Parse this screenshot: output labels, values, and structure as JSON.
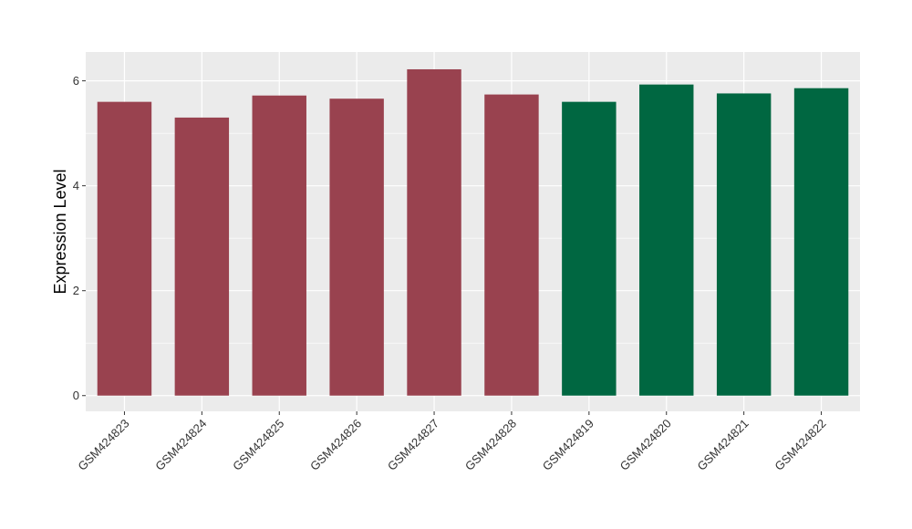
{
  "chart_data": {
    "type": "bar",
    "title": "",
    "xlabel": "",
    "ylabel": "Expression Level",
    "ylim": [
      -0.3,
      6.55
    ],
    "yticks": [
      0,
      2,
      4,
      6
    ],
    "grid": true,
    "categories": [
      "GSM424823",
      "GSM424824",
      "GSM424825",
      "GSM424826",
      "GSM424827",
      "GSM424828",
      "GSM424819",
      "GSM424820",
      "GSM424821",
      "GSM424822"
    ],
    "values": [
      5.6,
      5.3,
      5.72,
      5.66,
      6.22,
      5.74,
      5.6,
      5.93,
      5.76,
      5.86
    ],
    "bar_colors": [
      "#99424F",
      "#99424F",
      "#99424F",
      "#99424F",
      "#99424F",
      "#99424F",
      "#006741",
      "#006741",
      "#006741",
      "#006741"
    ],
    "panel_background": "#EBEBEB",
    "grid_color": "#FFFFFF"
  }
}
